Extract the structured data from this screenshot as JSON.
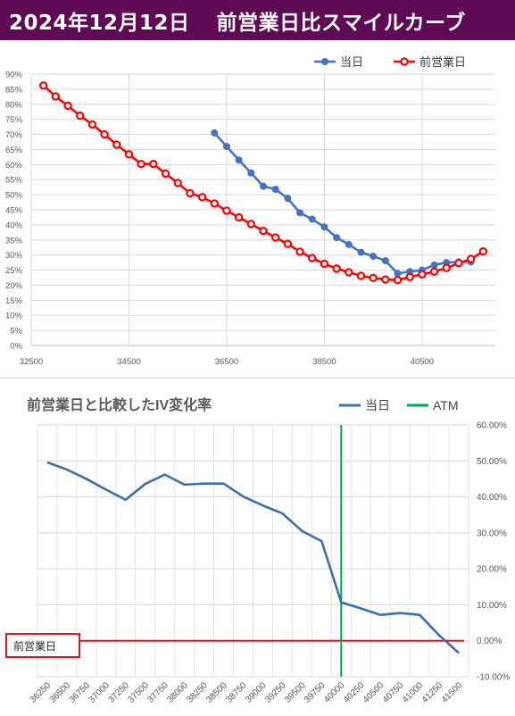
{
  "header": {
    "date": "2024年12月12日",
    "title": "前営業日比スマイルカーブ",
    "bg": "#5e0a55"
  },
  "chart_data": [
    {
      "type": "line",
      "title": "",
      "legend": "top-right",
      "grid": true,
      "xlim": [
        32500,
        42000
      ],
      "ylim": [
        0,
        0.9
      ],
      "x_ticks": [
        "32500",
        "34500",
        "36500",
        "38500",
        "40500"
      ],
      "y_ticks": [
        "0%",
        "5%",
        "10%",
        "15%",
        "20%",
        "25%",
        "30%",
        "35%",
        "40%",
        "45%",
        "50%",
        "55%",
        "60%",
        "65%",
        "70%",
        "75%",
        "80%",
        "85%",
        "90%"
      ],
      "series": [
        {
          "name": "当日",
          "color": "#4472c4",
          "x": [
            36250,
            36500,
            36750,
            37000,
            37250,
            37500,
            37750,
            38000,
            38250,
            38500,
            38750,
            39000,
            39250,
            39500,
            39750,
            40000,
            40250,
            40500,
            40750,
            41000,
            41250,
            41500
          ],
          "y": [
            0.705,
            0.66,
            0.615,
            0.572,
            0.528,
            0.518,
            0.488,
            0.44,
            0.419,
            0.393,
            0.358,
            0.335,
            0.309,
            0.296,
            0.281,
            0.239,
            0.245,
            0.25,
            0.267,
            0.275,
            0.277,
            0.277
          ]
        },
        {
          "name": "前営業日",
          "color": "#ff0000",
          "x": [
            32750,
            33000,
            33250,
            33500,
            33750,
            34000,
            34250,
            34500,
            34750,
            35000,
            35250,
            35500,
            35750,
            36000,
            36250,
            36500,
            36750,
            37000,
            37250,
            37500,
            37750,
            38000,
            38250,
            38500,
            38750,
            39000,
            39250,
            39500,
            39750,
            40000,
            40250,
            40500,
            40750,
            41000,
            41250,
            41500,
            41750
          ],
          "y": [
            0.862,
            0.826,
            0.795,
            0.762,
            0.733,
            0.7,
            0.666,
            0.634,
            0.602,
            0.602,
            0.57,
            0.539,
            0.505,
            0.492,
            0.471,
            0.447,
            0.425,
            0.403,
            0.38,
            0.358,
            0.337,
            0.311,
            0.29,
            0.271,
            0.255,
            0.243,
            0.231,
            0.224,
            0.219,
            0.217,
            0.227,
            0.236,
            0.245,
            0.257,
            0.273,
            0.287,
            0.312
          ]
        }
      ]
    },
    {
      "type": "line",
      "title": "前営業日と比較したIV変化率",
      "legend": "top-right",
      "grid": true,
      "ylim": [
        -0.1,
        0.6
      ],
      "categories": [
        "36250",
        "36500",
        "36750",
        "37000",
        "37250",
        "37500",
        "37750",
        "38000",
        "38250",
        "38500",
        "38750",
        "39000",
        "39250",
        "39500",
        "39750",
        "40000",
        "40250",
        "40500",
        "40750",
        "41000",
        "41250",
        "41500"
      ],
      "y_ticks": [
        "60.00%",
        "50.00%",
        "40.00%",
        "30.00%",
        "20.00%",
        "10.00%",
        "0.00%",
        "-10.00%"
      ],
      "series": [
        {
          "name": "当日",
          "color": "#3a6eb5",
          "values": [
            0.496,
            0.476,
            0.45,
            0.42,
            0.392,
            0.436,
            0.462,
            0.434,
            0.437,
            0.437,
            0.401,
            0.376,
            0.354,
            0.305,
            0.277,
            0.107,
            0.09,
            0.072,
            0.077,
            0.072,
            0.015,
            -0.034
          ]
        }
      ],
      "atm": {
        "label": "ATM",
        "at": "40000",
        "color": "#00a651"
      },
      "reference_line": {
        "label": "前営業日",
        "value": 0,
        "color": "#e0141e"
      }
    }
  ]
}
